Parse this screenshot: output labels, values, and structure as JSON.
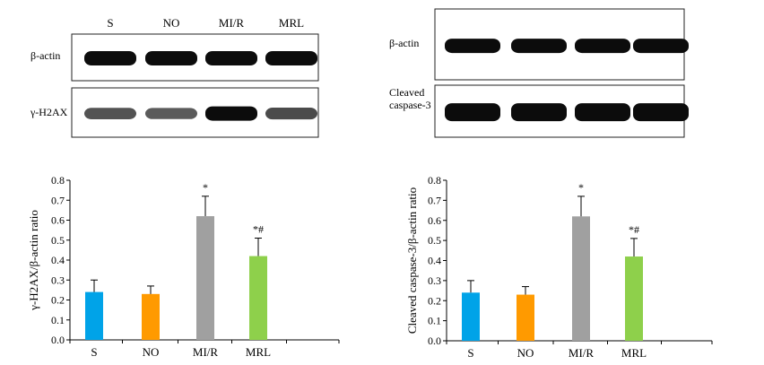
{
  "lanes": [
    "S",
    "NO",
    "MI/R",
    "MRL"
  ],
  "colors": {
    "S": "#00a3e8",
    "NO": "#ff9a00",
    "MI/R": "#a0a0a0",
    "MRL": "#8ed04b",
    "band": "#0c0c0c"
  },
  "left": {
    "blot_labels": [
      "β-actin",
      "γ-H2AX"
    ],
    "band_intensity": {
      "actin": [
        1,
        1,
        1,
        1
      ],
      "target": [
        0.55,
        0.5,
        1,
        0.6
      ]
    }
  },
  "right": {
    "blot_labels": [
      "β-actin",
      "Cleaved\ncaspase-3"
    ],
    "band_intensity": {
      "actin": [
        1,
        1,
        1,
        1
      ],
      "target": [
        1,
        1,
        1,
        1
      ]
    }
  },
  "chart_data": [
    {
      "type": "bar",
      "categories": [
        "S",
        "NO",
        "MI/R",
        "MRL"
      ],
      "values": [
        0.24,
        0.23,
        0.62,
        0.42
      ],
      "errors": [
        0.06,
        0.04,
        0.1,
        0.09
      ],
      "annotations": [
        "",
        "",
        "*",
        "*#"
      ],
      "ylabel": "γ-H2AX/β-actin ratio",
      "xlabel": "",
      "ylim": [
        0,
        0.8
      ],
      "yticks": [
        "0.0",
        "0.1",
        "0.2",
        "0.3",
        "0.4",
        "0.5",
        "0.6",
        "0.7",
        "0.8"
      ],
      "grid": false
    },
    {
      "type": "bar",
      "categories": [
        "S",
        "NO",
        "MI/R",
        "MRL"
      ],
      "values": [
        0.24,
        0.23,
        0.62,
        0.42
      ],
      "errors": [
        0.06,
        0.04,
        0.1,
        0.09
      ],
      "annotations": [
        "",
        "",
        "*",
        "*#"
      ],
      "ylabel": "Cleaved caspase-3/β-actin ratio",
      "xlabel": "",
      "ylim": [
        0,
        0.8
      ],
      "yticks": [
        "0.0",
        "0.1",
        "0.2",
        "0.3",
        "0.4",
        "0.5",
        "0.6",
        "0.7",
        "0.8"
      ],
      "grid": false
    }
  ]
}
